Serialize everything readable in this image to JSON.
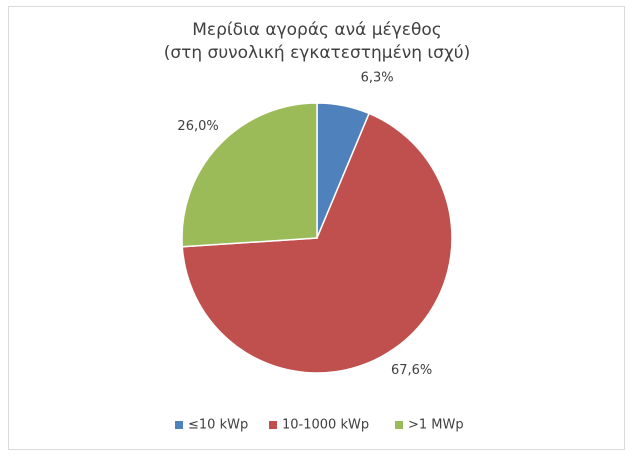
{
  "chart_data": {
    "type": "pie",
    "title": "Μερίδια αγοράς ανά μέγεθος",
    "subtitle": "(στη συνολική εγκατεστημένη ισχύ)",
    "categories": [
      "≤10 kWp",
      "10-1000 kWp",
      ">1 MWp"
    ],
    "values": [
      6.3,
      67.6,
      26.0
    ],
    "value_labels": [
      "6,3%",
      "67,6%",
      "26,0%"
    ],
    "colors": [
      "#4f81bd",
      "#c0504d",
      "#9bbb59"
    ],
    "legend": "bottom"
  }
}
